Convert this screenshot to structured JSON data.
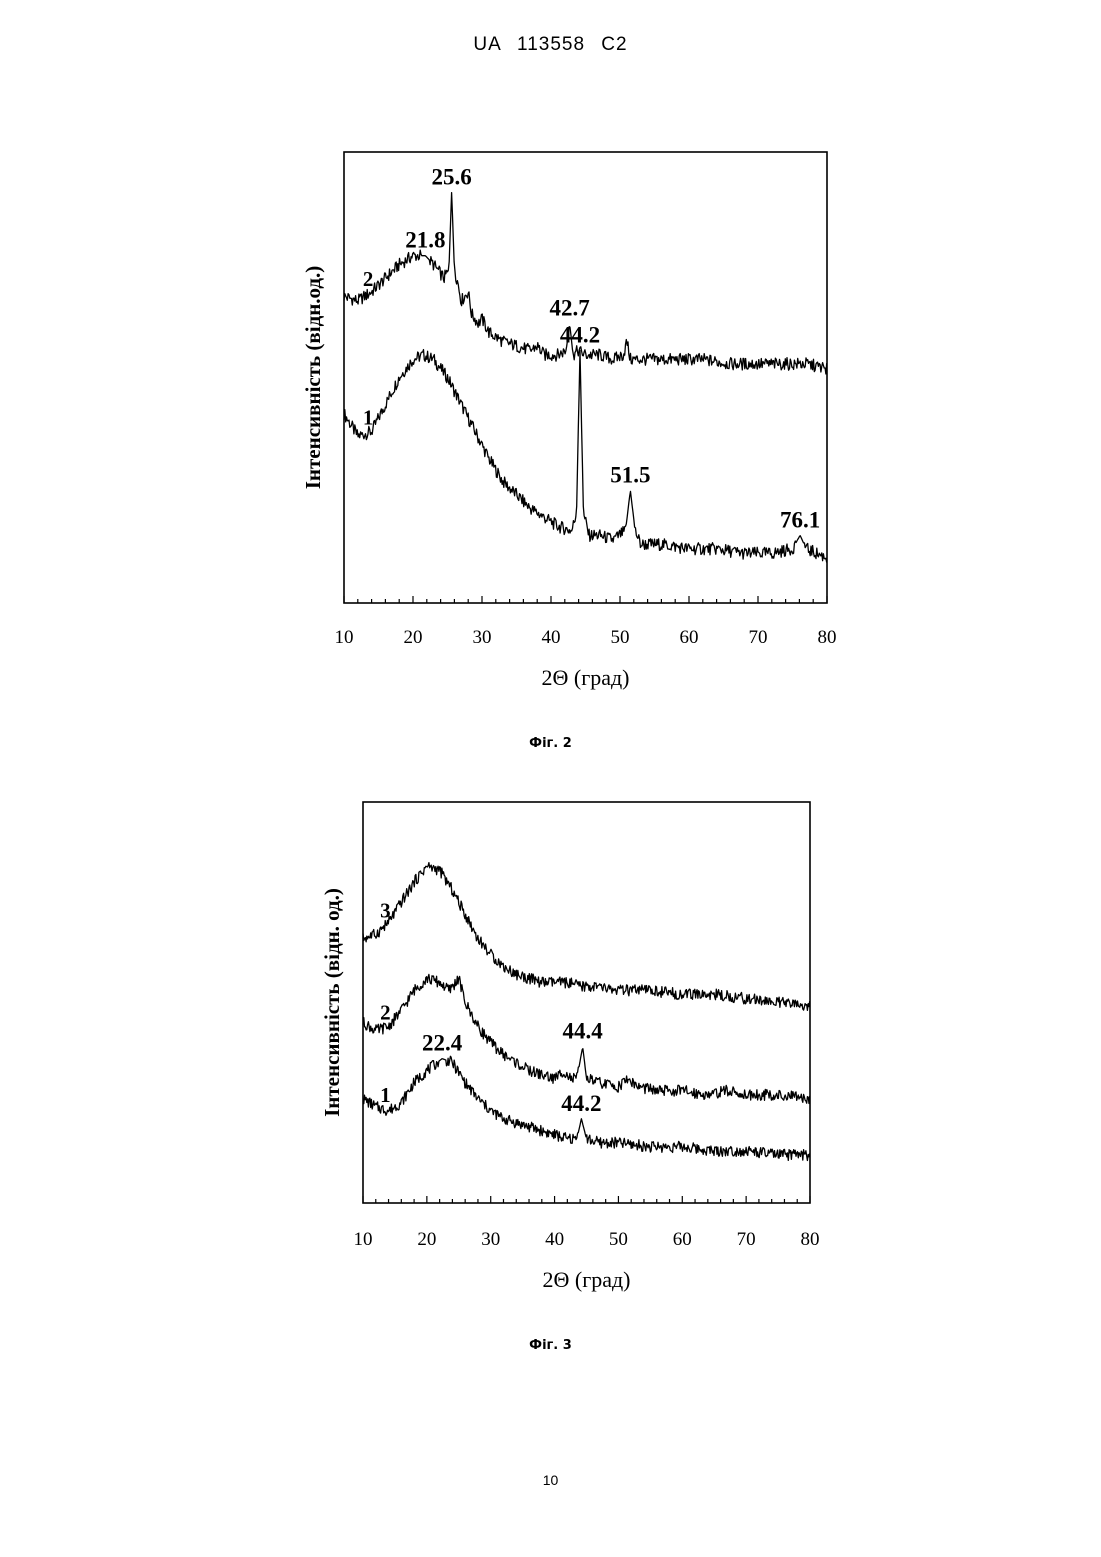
{
  "document": {
    "header": "UA 113558 C2",
    "page_number": "10"
  },
  "chart_data": [
    {
      "type": "line",
      "caption": "Фіг. 2",
      "xlabel": "2Θ (град)",
      "ylabel": "Інтенсивність (відн.од.)",
      "xlim": [
        10,
        80
      ],
      "xticks": [
        10,
        20,
        30,
        40,
        50,
        60,
        70,
        80
      ],
      "grid": false,
      "series": [
        {
          "name": "1",
          "points": [
            [
              10,
              0.42
            ],
            [
              12,
              0.37
            ],
            [
              14,
              0.38
            ],
            [
              16,
              0.44
            ],
            [
              18,
              0.5
            ],
            [
              20,
              0.54
            ],
            [
              21.5,
              0.55
            ],
            [
              23,
              0.54
            ],
            [
              25,
              0.5
            ],
            [
              27,
              0.44
            ],
            [
              29,
              0.38
            ],
            [
              31,
              0.32
            ],
            [
              33,
              0.27
            ],
            [
              35,
              0.24
            ],
            [
              37,
              0.21
            ],
            [
              39,
              0.19
            ],
            [
              41,
              0.17
            ],
            [
              43,
              0.16
            ],
            [
              43.7,
              0.2
            ],
            [
              44.2,
              0.56
            ],
            [
              44.7,
              0.2
            ],
            [
              45.5,
              0.15
            ],
            [
              47,
              0.15
            ],
            [
              49,
              0.14
            ],
            [
              50.8,
              0.16
            ],
            [
              51.5,
              0.25
            ],
            [
              52.2,
              0.16
            ],
            [
              53,
              0.13
            ],
            [
              56,
              0.13
            ],
            [
              60,
              0.12
            ],
            [
              64,
              0.12
            ],
            [
              68,
              0.11
            ],
            [
              72,
              0.11
            ],
            [
              75,
              0.12
            ],
            [
              76.1,
              0.15
            ],
            [
              77,
              0.12
            ],
            [
              80,
              0.1
            ]
          ],
          "peaks": [
            {
              "x": 44.2,
              "label": "44.2"
            },
            {
              "x": 51.5,
              "label": "51.5"
            },
            {
              "x": 76.1,
              "label": "76.1"
            }
          ]
        },
        {
          "name": "2",
          "points": [
            [
              10,
              0.68
            ],
            [
              12,
              0.67
            ],
            [
              14,
              0.69
            ],
            [
              16,
              0.72
            ],
            [
              18,
              0.75
            ],
            [
              20,
              0.77
            ],
            [
              21.8,
              0.77
            ],
            [
              23,
              0.75
            ],
            [
              24.5,
              0.72
            ],
            [
              25.2,
              0.74
            ],
            [
              25.6,
              0.91
            ],
            [
              26,
              0.74
            ],
            [
              26.5,
              0.71
            ],
            [
              27,
              0.67
            ],
            [
              28,
              0.69
            ],
            [
              28.5,
              0.64
            ],
            [
              29.5,
              0.62
            ],
            [
              30,
              0.63
            ],
            [
              31,
              0.6
            ],
            [
              33,
              0.58
            ],
            [
              35,
              0.57
            ],
            [
              37,
              0.56
            ],
            [
              38,
              0.57
            ],
            [
              39,
              0.55
            ],
            [
              41,
              0.55
            ],
            [
              42.2,
              0.56
            ],
            [
              42.7,
              0.62
            ],
            [
              43.2,
              0.55
            ],
            [
              44,
              0.56
            ],
            [
              45,
              0.55
            ],
            [
              47,
              0.55
            ],
            [
              49,
              0.54
            ],
            [
              50.5,
              0.55
            ],
            [
              51,
              0.58
            ],
            [
              51.5,
              0.54
            ],
            [
              54,
              0.54
            ],
            [
              58,
              0.54
            ],
            [
              62,
              0.54
            ],
            [
              66,
              0.53
            ],
            [
              70,
              0.53
            ],
            [
              74,
              0.53
            ],
            [
              77,
              0.53
            ],
            [
              80,
              0.52
            ]
          ],
          "peaks": [
            {
              "x": 21.8,
              "label": "21.8"
            },
            {
              "x": 25.6,
              "label": "25.6"
            },
            {
              "x": 42.7,
              "label": "42.7"
            }
          ]
        }
      ]
    },
    {
      "type": "line",
      "caption": "Фіг. 3",
      "xlabel": "2Θ (град)",
      "ylabel": "Інтенсивність (відн. од.)",
      "xlim": [
        10,
        80
      ],
      "xticks": [
        10,
        20,
        30,
        40,
        50,
        60,
        70,
        80
      ],
      "grid": false,
      "series": [
        {
          "name": "1",
          "points": [
            [
              10,
              0.26
            ],
            [
              12,
              0.24
            ],
            [
              14,
              0.23
            ],
            [
              16,
              0.25
            ],
            [
              18,
              0.3
            ],
            [
              20,
              0.33
            ],
            [
              22.4,
              0.36
            ],
            [
              24,
              0.35
            ],
            [
              26,
              0.3
            ],
            [
              28,
              0.26
            ],
            [
              30,
              0.23
            ],
            [
              32,
              0.21
            ],
            [
              34,
              0.2
            ],
            [
              36,
              0.19
            ],
            [
              38,
              0.18
            ],
            [
              40,
              0.17
            ],
            [
              42,
              0.16
            ],
            [
              43.5,
              0.16
            ],
            [
              44.2,
              0.21
            ],
            [
              45,
              0.16
            ],
            [
              47,
              0.15
            ],
            [
              50,
              0.15
            ],
            [
              55,
              0.14
            ],
            [
              60,
              0.14
            ],
            [
              65,
              0.13
            ],
            [
              70,
              0.13
            ],
            [
              75,
              0.12
            ],
            [
              80,
              0.12
            ]
          ],
          "peaks": [
            {
              "x": 22.4,
              "label": "22.4"
            },
            {
              "x": 44.2,
              "label": "44.2"
            }
          ]
        },
        {
          "name": "2",
          "points": [
            [
              10,
              0.45
            ],
            [
              12,
              0.43
            ],
            [
              14,
              0.44
            ],
            [
              16,
              0.48
            ],
            [
              18,
              0.53
            ],
            [
              20,
              0.56
            ],
            [
              22,
              0.55
            ],
            [
              23.5,
              0.53
            ],
            [
              25,
              0.56
            ],
            [
              26,
              0.5
            ],
            [
              28,
              0.44
            ],
            [
              30,
              0.4
            ],
            [
              32,
              0.37
            ],
            [
              34,
              0.35
            ],
            [
              36,
              0.33
            ],
            [
              38,
              0.32
            ],
            [
              40,
              0.31
            ],
            [
              41.5,
              0.33
            ],
            [
              42.5,
              0.31
            ],
            [
              43.5,
              0.31
            ],
            [
              44.4,
              0.39
            ],
            [
              45,
              0.31
            ],
            [
              47,
              0.3
            ],
            [
              50,
              0.29
            ],
            [
              51.5,
              0.31
            ],
            [
              53,
              0.29
            ],
            [
              56,
              0.28
            ],
            [
              60,
              0.28
            ],
            [
              64,
              0.27
            ],
            [
              67,
              0.28
            ],
            [
              70,
              0.27
            ],
            [
              74,
              0.27
            ],
            [
              80,
              0.26
            ]
          ],
          "peaks": [
            {
              "x": 44.4,
              "label": "44.4"
            }
          ]
        },
        {
          "name": "3",
          "points": [
            [
              10,
              0.66
            ],
            [
              12,
              0.67
            ],
            [
              14,
              0.7
            ],
            [
              16,
              0.75
            ],
            [
              18,
              0.8
            ],
            [
              20,
              0.84
            ],
            [
              22,
              0.83
            ],
            [
              24,
              0.78
            ],
            [
              26,
              0.72
            ],
            [
              28,
              0.66
            ],
            [
              30,
              0.62
            ],
            [
              32,
              0.59
            ],
            [
              34,
              0.57
            ],
            [
              36,
              0.56
            ],
            [
              38,
              0.55
            ],
            [
              40,
              0.55
            ],
            [
              42,
              0.55
            ],
            [
              44,
              0.54
            ],
            [
              46,
              0.54
            ],
            [
              50,
              0.53
            ],
            [
              55,
              0.53
            ],
            [
              60,
              0.52
            ],
            [
              65,
              0.52
            ],
            [
              70,
              0.51
            ],
            [
              75,
              0.5
            ],
            [
              80,
              0.49
            ]
          ],
          "peaks": []
        }
      ]
    }
  ]
}
